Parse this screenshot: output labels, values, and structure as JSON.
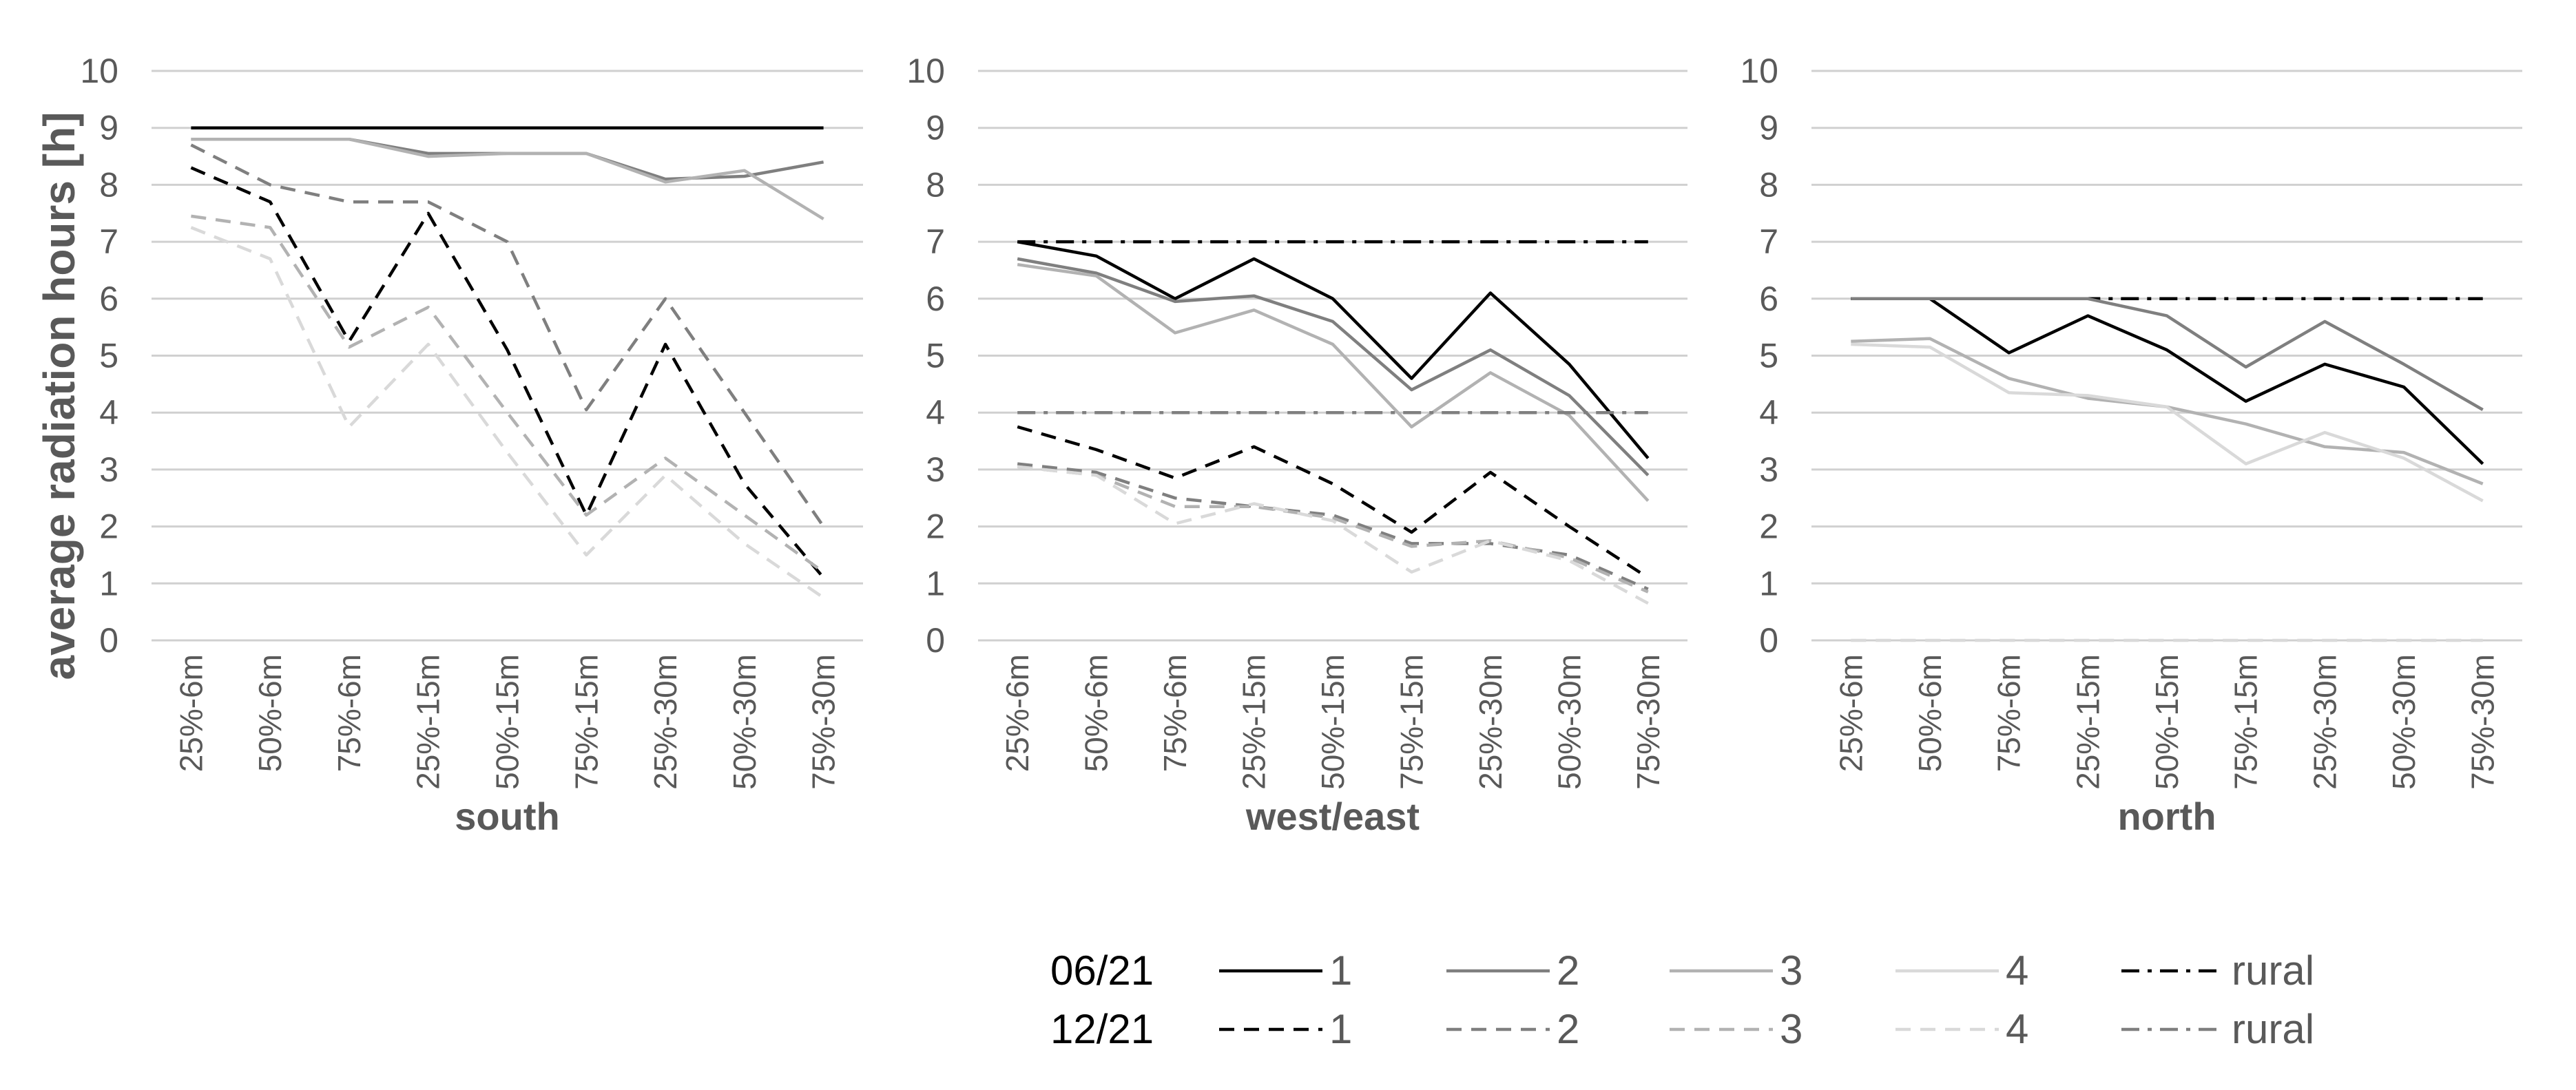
{
  "chart_data": {
    "type": "line",
    "ylabel": "average radiation hours [h]",
    "ylim": [
      0,
      10
    ],
    "yticks": [
      "0",
      "1",
      "2",
      "3",
      "4",
      "5",
      "6",
      "7",
      "8",
      "9",
      "10"
    ],
    "categories": [
      "25%-6m",
      "50%-6m",
      "75%-6m",
      "25%-15m",
      "50%-15m",
      "75%-15m",
      "25%-30m",
      "50%-30m",
      "75%-30m"
    ],
    "series_styles": {
      "06/21-1": {
        "color": "#000000",
        "dash": "solid"
      },
      "06/21-2": {
        "color": "#7f7f7f",
        "dash": "solid"
      },
      "06/21-3": {
        "color": "#b2b2b2",
        "dash": "solid"
      },
      "06/21-4": {
        "color": "#d9d9d9",
        "dash": "solid"
      },
      "06/21-rural": {
        "color": "#000000",
        "dash": "dashdot"
      },
      "12/21-1": {
        "color": "#000000",
        "dash": "dash"
      },
      "12/21-2": {
        "color": "#7f7f7f",
        "dash": "dash"
      },
      "12/21-3": {
        "color": "#b2b2b2",
        "dash": "dash"
      },
      "12/21-4": {
        "color": "#d9d9d9",
        "dash": "dash"
      },
      "12/21-rural": {
        "color": "#7f7f7f",
        "dash": "dashdot"
      }
    },
    "panels": [
      {
        "title": "south",
        "series": [
          {
            "key": "06/21-1",
            "values": [
              9,
              9,
              9,
              9,
              9,
              9,
              9,
              9,
              9
            ]
          },
          {
            "key": "06/21-2",
            "values": [
              8.8,
              8.8,
              8.8,
              8.55,
              8.55,
              8.55,
              8.1,
              8.15,
              8.4
            ]
          },
          {
            "key": "06/21-3",
            "values": [
              8.8,
              8.8,
              8.8,
              8.5,
              8.55,
              8.55,
              8.05,
              8.25,
              7.4
            ]
          },
          {
            "key": "12/21-1",
            "values": [
              8.3,
              7.7,
              5.25,
              7.5,
              5.1,
              2.2,
              5.2,
              2.75,
              1.1
            ]
          },
          {
            "key": "12/21-2",
            "values": [
              8.7,
              8.0,
              7.7,
              7.7,
              7.0,
              4.05,
              6.0,
              4.0,
              2.0
            ]
          },
          {
            "key": "12/21-3",
            "values": [
              7.45,
              7.25,
              5.15,
              5.85,
              4.0,
              2.2,
              3.2,
              2.2,
              1.2
            ]
          },
          {
            "key": "12/21-4",
            "values": [
              7.25,
              6.7,
              3.75,
              5.2,
              3.3,
              1.5,
              2.9,
              1.7,
              0.75
            ]
          }
        ]
      },
      {
        "title": "west/east",
        "series": [
          {
            "key": "06/21-1",
            "values": [
              7.0,
              6.75,
              6.0,
              6.7,
              6.0,
              4.6,
              6.1,
              4.85,
              3.2
            ]
          },
          {
            "key": "06/21-2",
            "values": [
              6.7,
              6.45,
              5.95,
              6.05,
              5.6,
              4.4,
              5.1,
              4.3,
              2.9
            ]
          },
          {
            "key": "06/21-3",
            "values": [
              6.6,
              6.4,
              5.4,
              5.8,
              5.2,
              3.75,
              4.7,
              3.95,
              2.45
            ]
          },
          {
            "key": "06/21-rural",
            "values": [
              7,
              7,
              7,
              7,
              7,
              7,
              7,
              7,
              7
            ]
          },
          {
            "key": "12/21-rural",
            "values": [
              4,
              4,
              4,
              4,
              4,
              4,
              4,
              4,
              4
            ]
          },
          {
            "key": "12/21-1",
            "values": [
              3.75,
              3.35,
              2.85,
              3.4,
              2.75,
              1.9,
              2.95,
              2.0,
              1.1
            ]
          },
          {
            "key": "12/21-2",
            "values": [
              3.1,
              2.95,
              2.5,
              2.35,
              2.2,
              1.7,
              1.7,
              1.5,
              0.9
            ]
          },
          {
            "key": "12/21-3",
            "values": [
              3.05,
              2.9,
              2.35,
              2.35,
              2.15,
              1.65,
              1.75,
              1.45,
              0.85
            ]
          },
          {
            "key": "12/21-4",
            "values": [
              3.05,
              2.9,
              2.05,
              2.4,
              2.1,
              1.2,
              1.75,
              1.4,
              0.65
            ]
          }
        ]
      },
      {
        "title": "north",
        "series": [
          {
            "key": "06/21-rural",
            "values": [
              6,
              6,
              6,
              6,
              6,
              6,
              6,
              6,
              6
            ]
          },
          {
            "key": "06/21-1",
            "values": [
              6.0,
              6.0,
              5.05,
              5.7,
              5.1,
              4.2,
              4.85,
              4.45,
              3.1
            ]
          },
          {
            "key": "06/21-2",
            "values": [
              6.0,
              6.0,
              6.0,
              6.0,
              5.7,
              4.8,
              5.6,
              4.85,
              4.05
            ]
          },
          {
            "key": "06/21-3",
            "values": [
              5.25,
              5.3,
              4.6,
              4.25,
              4.1,
              3.8,
              3.4,
              3.3,
              2.75
            ]
          },
          {
            "key": "06/21-4",
            "values": [
              5.2,
              5.15,
              4.35,
              4.3,
              4.1,
              3.1,
              3.65,
              3.2,
              2.45
            ]
          },
          {
            "key": "12/21-4",
            "values": [
              0,
              0,
              0,
              0,
              0,
              0,
              0,
              0,
              0
            ]
          }
        ]
      }
    ],
    "legend": {
      "rows": [
        {
          "date": "06/21",
          "entries": [
            {
              "key": "06/21-1",
              "label": "1"
            },
            {
              "key": "06/21-2",
              "label": "2"
            },
            {
              "key": "06/21-3",
              "label": "3"
            },
            {
              "key": "06/21-4",
              "label": "4"
            },
            {
              "key": "06/21-rural",
              "label": "rural"
            }
          ]
        },
        {
          "date": "12/21",
          "entries": [
            {
              "key": "12/21-1",
              "label": "1"
            },
            {
              "key": "12/21-2",
              "label": "2"
            },
            {
              "key": "12/21-3",
              "label": "3"
            },
            {
              "key": "12/21-4",
              "label": "4"
            },
            {
              "key": "12/21-rural",
              "label": "rural"
            }
          ]
        }
      ]
    }
  }
}
